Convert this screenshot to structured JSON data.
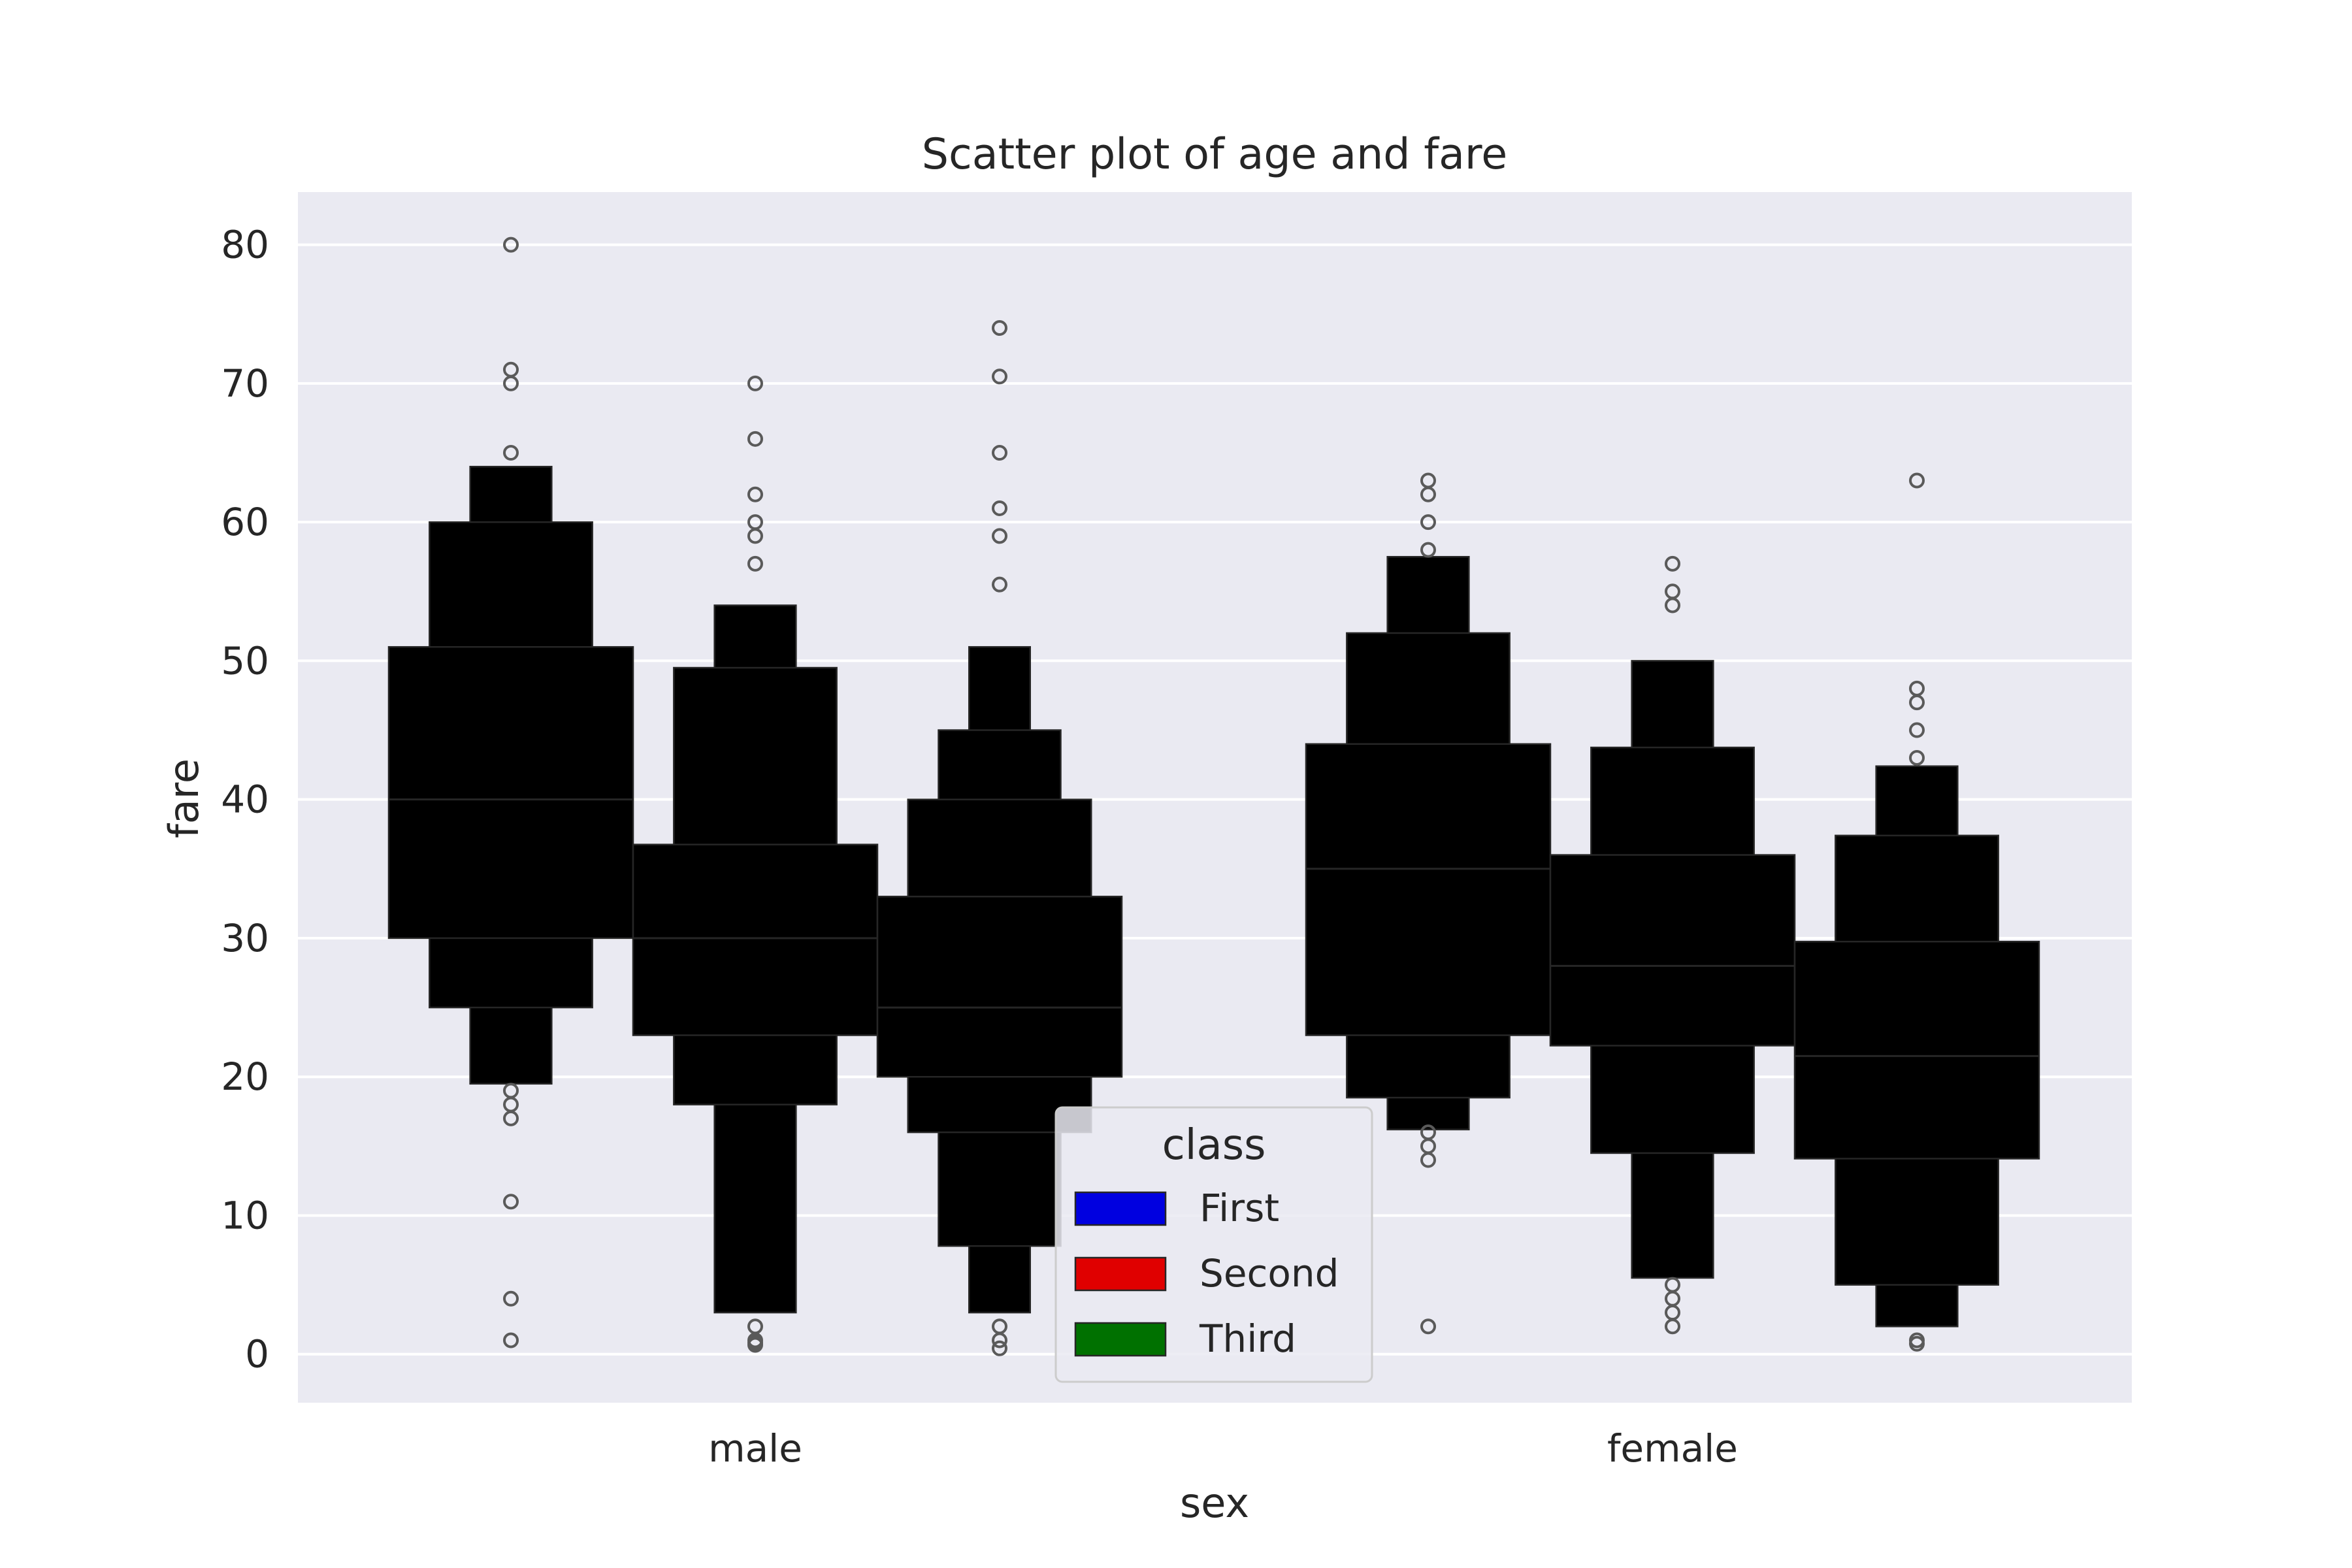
{
  "chart_data": {
    "type": "boxen",
    "title": "Scatter plot of age and fare",
    "xlabel": "sex",
    "ylabel": "fare",
    "categories": [
      "male",
      "female"
    ],
    "ylim": [
      -3.5,
      83.8
    ],
    "yticks": [
      0,
      10,
      20,
      30,
      40,
      50,
      60,
      70,
      80
    ],
    "grid": true,
    "background": "#eaeaf2",
    "legend": {
      "title": "class",
      "placement": "lower center",
      "entries": [
        {
          "label": "First",
          "color": "#0000ff"
        },
        {
          "label": "Second",
          "color": "#ff0000"
        },
        {
          "label": "Third",
          "color": "#008000"
        }
      ]
    },
    "series": [
      {
        "name": "First",
        "color": "#0000ff",
        "groups": [
          {
            "category": "male",
            "median": 40,
            "levels": [
              [
                30,
                51
              ],
              [
                25,
                60
              ],
              [
                19.5,
                64
              ]
            ],
            "outliers": [
              80,
              71,
              70,
              65,
              19,
              18,
              17,
              11,
              4,
              1
            ]
          },
          {
            "category": "female",
            "median": 35,
            "levels": [
              [
                23,
                44
              ],
              [
                18.5,
                52
              ],
              [
                16.2,
                57.5
              ]
            ],
            "outliers": [
              63,
              62,
              60,
              58,
              16,
              15,
              14,
              2
            ]
          }
        ]
      },
      {
        "name": "Second",
        "color": "#ff0000",
        "groups": [
          {
            "category": "male",
            "median": 30,
            "levels": [
              [
                23,
                36.75
              ],
              [
                18,
                49.5
              ],
              [
                3,
                54
              ]
            ],
            "outliers": [
              70,
              66,
              62,
              60,
              59,
              57,
              2,
              1,
              0.83,
              0.67
            ]
          },
          {
            "category": "female",
            "median": 28,
            "levels": [
              [
                22.25,
                36
              ],
              [
                14.5,
                43.75
              ],
              [
                5.5,
                50
              ]
            ],
            "outliers": [
              57,
              55,
              54,
              5,
              4,
              3,
              2
            ]
          }
        ]
      },
      {
        "name": "Third",
        "color": "#008000",
        "groups": [
          {
            "category": "male",
            "median": 25,
            "levels": [
              [
                20,
                33
              ],
              [
                16,
                40
              ],
              [
                7.8,
                45
              ],
              [
                3,
                51
              ]
            ],
            "outliers": [
              74,
              70.5,
              65,
              61,
              59,
              55.5,
              2,
              1,
              0.42
            ]
          },
          {
            "category": "female",
            "median": 21.5,
            "levels": [
              [
                14.1,
                29.75
              ],
              [
                5,
                37.4
              ],
              [
                2,
                42.4
              ]
            ],
            "outliers": [
              63,
              48,
              47,
              45,
              43,
              1,
              0.75
            ]
          }
        ]
      }
    ]
  }
}
